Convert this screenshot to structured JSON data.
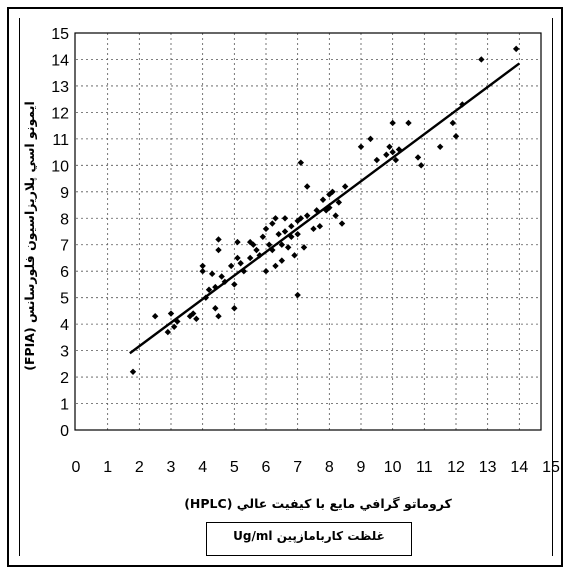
{
  "chart_data": {
    "type": "scatter",
    "title": "",
    "xlabel": "كروماتو گرافي مايع با كيفيت عالي (HPLC)",
    "ylabel": "ايمونو اسي پلاريزاسيون فلورسانس (FPIA)",
    "unit_label": "غلظت كاربامازپين Ug/ml",
    "xlim": [
      0,
      15
    ],
    "ylim": [
      0,
      15
    ],
    "x_ticks": [
      "0",
      "1",
      "2",
      "3",
      "4",
      "5",
      "6",
      "7",
      "8",
      "9",
      "10",
      "11",
      "12",
      "13",
      "14",
      "15"
    ],
    "y_ticks": [
      "0",
      "1",
      "2",
      "3",
      "4",
      "5",
      "6",
      "7",
      "8",
      "9",
      "10",
      "11",
      "12",
      "13",
      "14",
      "15"
    ],
    "grid": true,
    "fit_line": {
      "x": [
        1.7,
        14.0
      ],
      "y": [
        2.9,
        13.85
      ]
    },
    "points": [
      [
        1.8,
        2.2
      ],
      [
        2.5,
        4.3
      ],
      [
        2.9,
        3.7
      ],
      [
        3.0,
        4.4
      ],
      [
        3.1,
        3.9
      ],
      [
        3.2,
        4.1
      ],
      [
        3.6,
        4.3
      ],
      [
        3.7,
        4.4
      ],
      [
        3.8,
        4.2
      ],
      [
        4.0,
        6.2
      ],
      [
        4.0,
        6.0
      ],
      [
        4.1,
        5.0
      ],
      [
        4.2,
        5.3
      ],
      [
        4.3,
        5.9
      ],
      [
        4.4,
        5.4
      ],
      [
        4.4,
        4.6
      ],
      [
        4.5,
        6.8
      ],
      [
        4.5,
        7.2
      ],
      [
        4.5,
        4.3
      ],
      [
        4.6,
        5.8
      ],
      [
        4.7,
        5.6
      ],
      [
        4.9,
        6.2
      ],
      [
        5.0,
        4.6
      ],
      [
        5.0,
        5.5
      ],
      [
        5.1,
        6.5
      ],
      [
        5.1,
        7.1
      ],
      [
        5.2,
        6.3
      ],
      [
        5.3,
        6.0
      ],
      [
        5.5,
        6.5
      ],
      [
        5.5,
        7.1
      ],
      [
        5.6,
        7.0
      ],
      [
        5.7,
        6.8
      ],
      [
        5.8,
        6.6
      ],
      [
        5.9,
        7.3
      ],
      [
        6.0,
        6.0
      ],
      [
        6.0,
        7.6
      ],
      [
        6.1,
        7.0
      ],
      [
        6.2,
        6.8
      ],
      [
        6.2,
        7.8
      ],
      [
        6.3,
        6.2
      ],
      [
        6.3,
        8.0
      ],
      [
        6.4,
        7.4
      ],
      [
        6.5,
        6.4
      ],
      [
        6.5,
        7.0
      ],
      [
        6.6,
        7.5
      ],
      [
        6.6,
        8.0
      ],
      [
        6.7,
        6.9
      ],
      [
        6.8,
        7.3
      ],
      [
        6.8,
        7.7
      ],
      [
        6.9,
        6.6
      ],
      [
        7.0,
        5.1
      ],
      [
        7.0,
        7.4
      ],
      [
        7.0,
        7.9
      ],
      [
        7.1,
        8.0
      ],
      [
        7.1,
        10.1
      ],
      [
        7.2,
        6.9
      ],
      [
        7.3,
        8.1
      ],
      [
        7.3,
        9.2
      ],
      [
        7.5,
        7.6
      ],
      [
        7.6,
        8.3
      ],
      [
        7.7,
        7.7
      ],
      [
        7.8,
        8.7
      ],
      [
        7.9,
        8.3
      ],
      [
        8.0,
        8.4
      ],
      [
        8.0,
        8.9
      ],
      [
        8.1,
        9.0
      ],
      [
        8.2,
        8.1
      ],
      [
        8.3,
        8.6
      ],
      [
        8.4,
        7.8
      ],
      [
        8.5,
        9.2
      ],
      [
        9.0,
        10.7
      ],
      [
        9.3,
        11.0
      ],
      [
        9.5,
        10.2
      ],
      [
        9.8,
        10.4
      ],
      [
        9.9,
        10.7
      ],
      [
        10.0,
        10.5
      ],
      [
        10.0,
        11.6
      ],
      [
        10.1,
        10.2
      ],
      [
        10.2,
        10.6
      ],
      [
        10.5,
        11.6
      ],
      [
        10.8,
        10.3
      ],
      [
        10.9,
        10.0
      ],
      [
        11.5,
        10.7
      ],
      [
        11.9,
        11.6
      ],
      [
        12.0,
        11.1
      ],
      [
        12.2,
        12.3
      ],
      [
        12.8,
        14.0
      ],
      [
        13.9,
        14.4
      ]
    ]
  }
}
